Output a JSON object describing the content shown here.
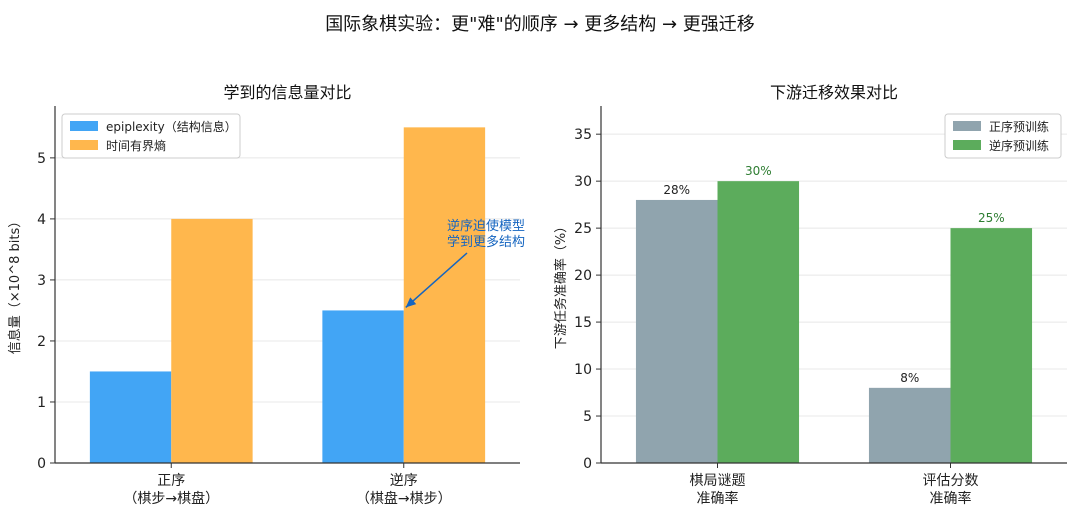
{
  "suptitle": "国际象棋实验：更\"难\"的顺序 → 更多结构 → 更强迁移",
  "chart_data": [
    {
      "type": "bar",
      "title": "学到的信息量对比",
      "ylabel": "信息量（×10^8 bits）",
      "xlabel": "",
      "categories": [
        "正序\n（棋步→棋盘）",
        "逆序\n（棋盘→棋步）"
      ],
      "series": [
        {
          "name": "epiplexity（结构信息）",
          "values": [
            1.5,
            2.5
          ],
          "color": "#42a5f5"
        },
        {
          "name": "时间有界熵",
          "values": [
            4.0,
            5.5
          ],
          "color": "#ffb74d"
        }
      ],
      "ylim": [
        0,
        5.85
      ],
      "yticks": [
        "0",
        "1",
        "2",
        "3",
        "4",
        "5"
      ],
      "grid": true,
      "legend_position": "top-left",
      "annotation": {
        "text": "逆序迫使模型\n学到更多结构",
        "target_series": 0,
        "target_category": 1,
        "color": "#1565c0"
      }
    },
    {
      "type": "bar",
      "title": "下游迁移效果对比",
      "ylabel": "下游任务准确率（%）",
      "xlabel": "",
      "categories": [
        "棋局谜题\n准确率",
        "评估分数\n准确率"
      ],
      "series": [
        {
          "name": "正序预训练",
          "values": [
            28,
            8
          ],
          "color": "#90a4ae",
          "labels": [
            "28%",
            "8%"
          ],
          "label_color": "#222222"
        },
        {
          "name": "逆序预训练",
          "values": [
            30,
            25
          ],
          "color": "#5cac5c",
          "labels": [
            "30%",
            "25%"
          ],
          "label_color": "#2e7d32"
        }
      ],
      "ylim": [
        0,
        38
      ],
      "yticks": [
        "0",
        "5",
        "10",
        "15",
        "20",
        "25",
        "30",
        "35"
      ],
      "grid": true,
      "legend_position": "top-right"
    }
  ]
}
